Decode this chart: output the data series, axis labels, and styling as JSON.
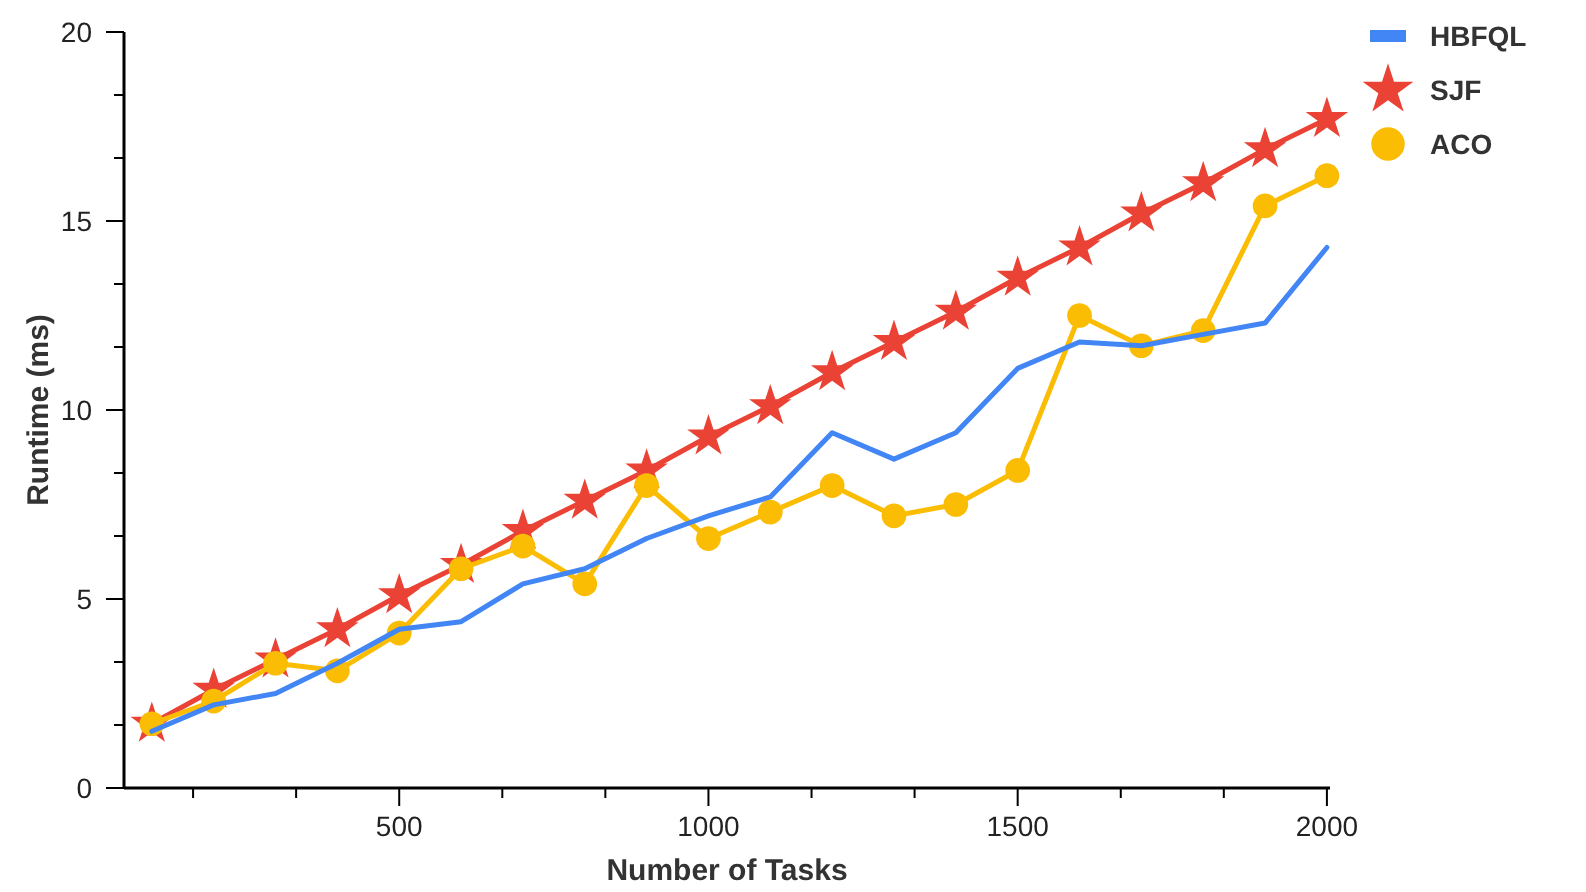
{
  "chart_data": {
    "type": "line",
    "xlabel": "Number of Tasks",
    "ylabel": "Runtime (ms)",
    "x": [
      100,
      200,
      300,
      400,
      500,
      600,
      700,
      800,
      900,
      1000,
      1100,
      1200,
      1300,
      1400,
      1500,
      1600,
      1700,
      1800,
      1900,
      2000
    ],
    "xlim": [
      55,
      2005
    ],
    "xticks": [
      {
        "value": 166.7,
        "label": null
      },
      {
        "value": 333.3,
        "label": null
      },
      500,
      {
        "value": 666.7,
        "label": null
      },
      {
        "value": 833.3,
        "label": null
      },
      1000,
      {
        "value": 1166.7,
        "label": null
      },
      {
        "value": 1333.3,
        "label": null
      },
      1500,
      {
        "value": 1666.7,
        "label": null
      },
      {
        "value": 1833.3,
        "label": null
      },
      2000
    ],
    "ylim": [
      0,
      20
    ],
    "yticks": [
      0,
      {
        "value": 1.667,
        "label": null
      },
      {
        "value": 3.333,
        "label": null
      },
      5,
      {
        "value": 6.667,
        "label": null
      },
      {
        "value": 8.333,
        "label": null
      },
      10,
      {
        "value": 11.667,
        "label": null
      },
      {
        "value": 13.333,
        "label": null
      },
      15,
      {
        "value": 16.667,
        "label": null
      },
      {
        "value": 18.333,
        "label": null
      },
      20
    ],
    "grid": false,
    "legend": "top right",
    "line_style": "solid",
    "series": [
      {
        "name": "HBFQL",
        "color": "#4285f4",
        "marker": "none",
        "values": [
          1.5,
          2.2,
          2.5,
          3.3,
          4.2,
          4.4,
          5.4,
          5.8,
          6.6,
          7.2,
          7.7,
          9.4,
          8.7,
          9.4,
          11.1,
          11.8,
          11.7,
          12.0,
          12.3,
          14.3
        ]
      },
      {
        "name": "SJF",
        "color": "#ea4335",
        "marker": "star",
        "values": [
          1.7,
          2.6,
          3.4,
          4.2,
          5.1,
          5.9,
          6.8,
          7.6,
          8.4,
          9.3,
          10.1,
          11.0,
          11.8,
          12.6,
          13.5,
          14.3,
          15.2,
          16.0,
          16.9,
          17.7
        ]
      },
      {
        "name": "ACO",
        "color": "#fbbc04",
        "marker": "circle",
        "values": [
          1.7,
          2.3,
          3.3,
          3.1,
          4.1,
          5.8,
          6.4,
          5.4,
          8.0,
          6.6,
          7.3,
          8.0,
          7.2,
          7.5,
          8.4,
          12.5,
          11.7,
          12.1,
          15.4,
          16.2
        ]
      }
    ]
  }
}
